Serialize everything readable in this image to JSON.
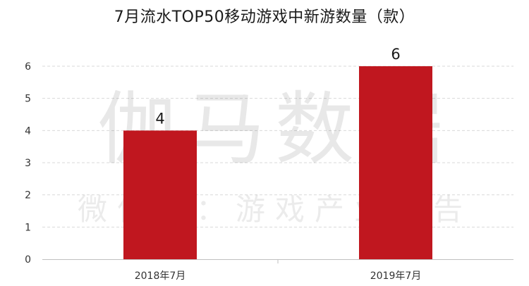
{
  "chart_data": {
    "type": "bar",
    "title": "7月流水TOP50移动游戏中新游数量（款）",
    "categories": [
      "2018年7月",
      "2019年7月"
    ],
    "values": [
      4,
      6
    ],
    "data_labels": [
      "4",
      "6"
    ],
    "ylim": [
      0,
      6
    ],
    "yticks": [
      "0",
      "1",
      "2",
      "3",
      "4",
      "5",
      "6"
    ],
    "xlabel": "",
    "ylabel": "",
    "grid": true,
    "legend": "none",
    "bar_color": "#c0171f"
  },
  "watermark": {
    "main": "伽马数据",
    "sub": "微信号：游戏产业报告"
  }
}
